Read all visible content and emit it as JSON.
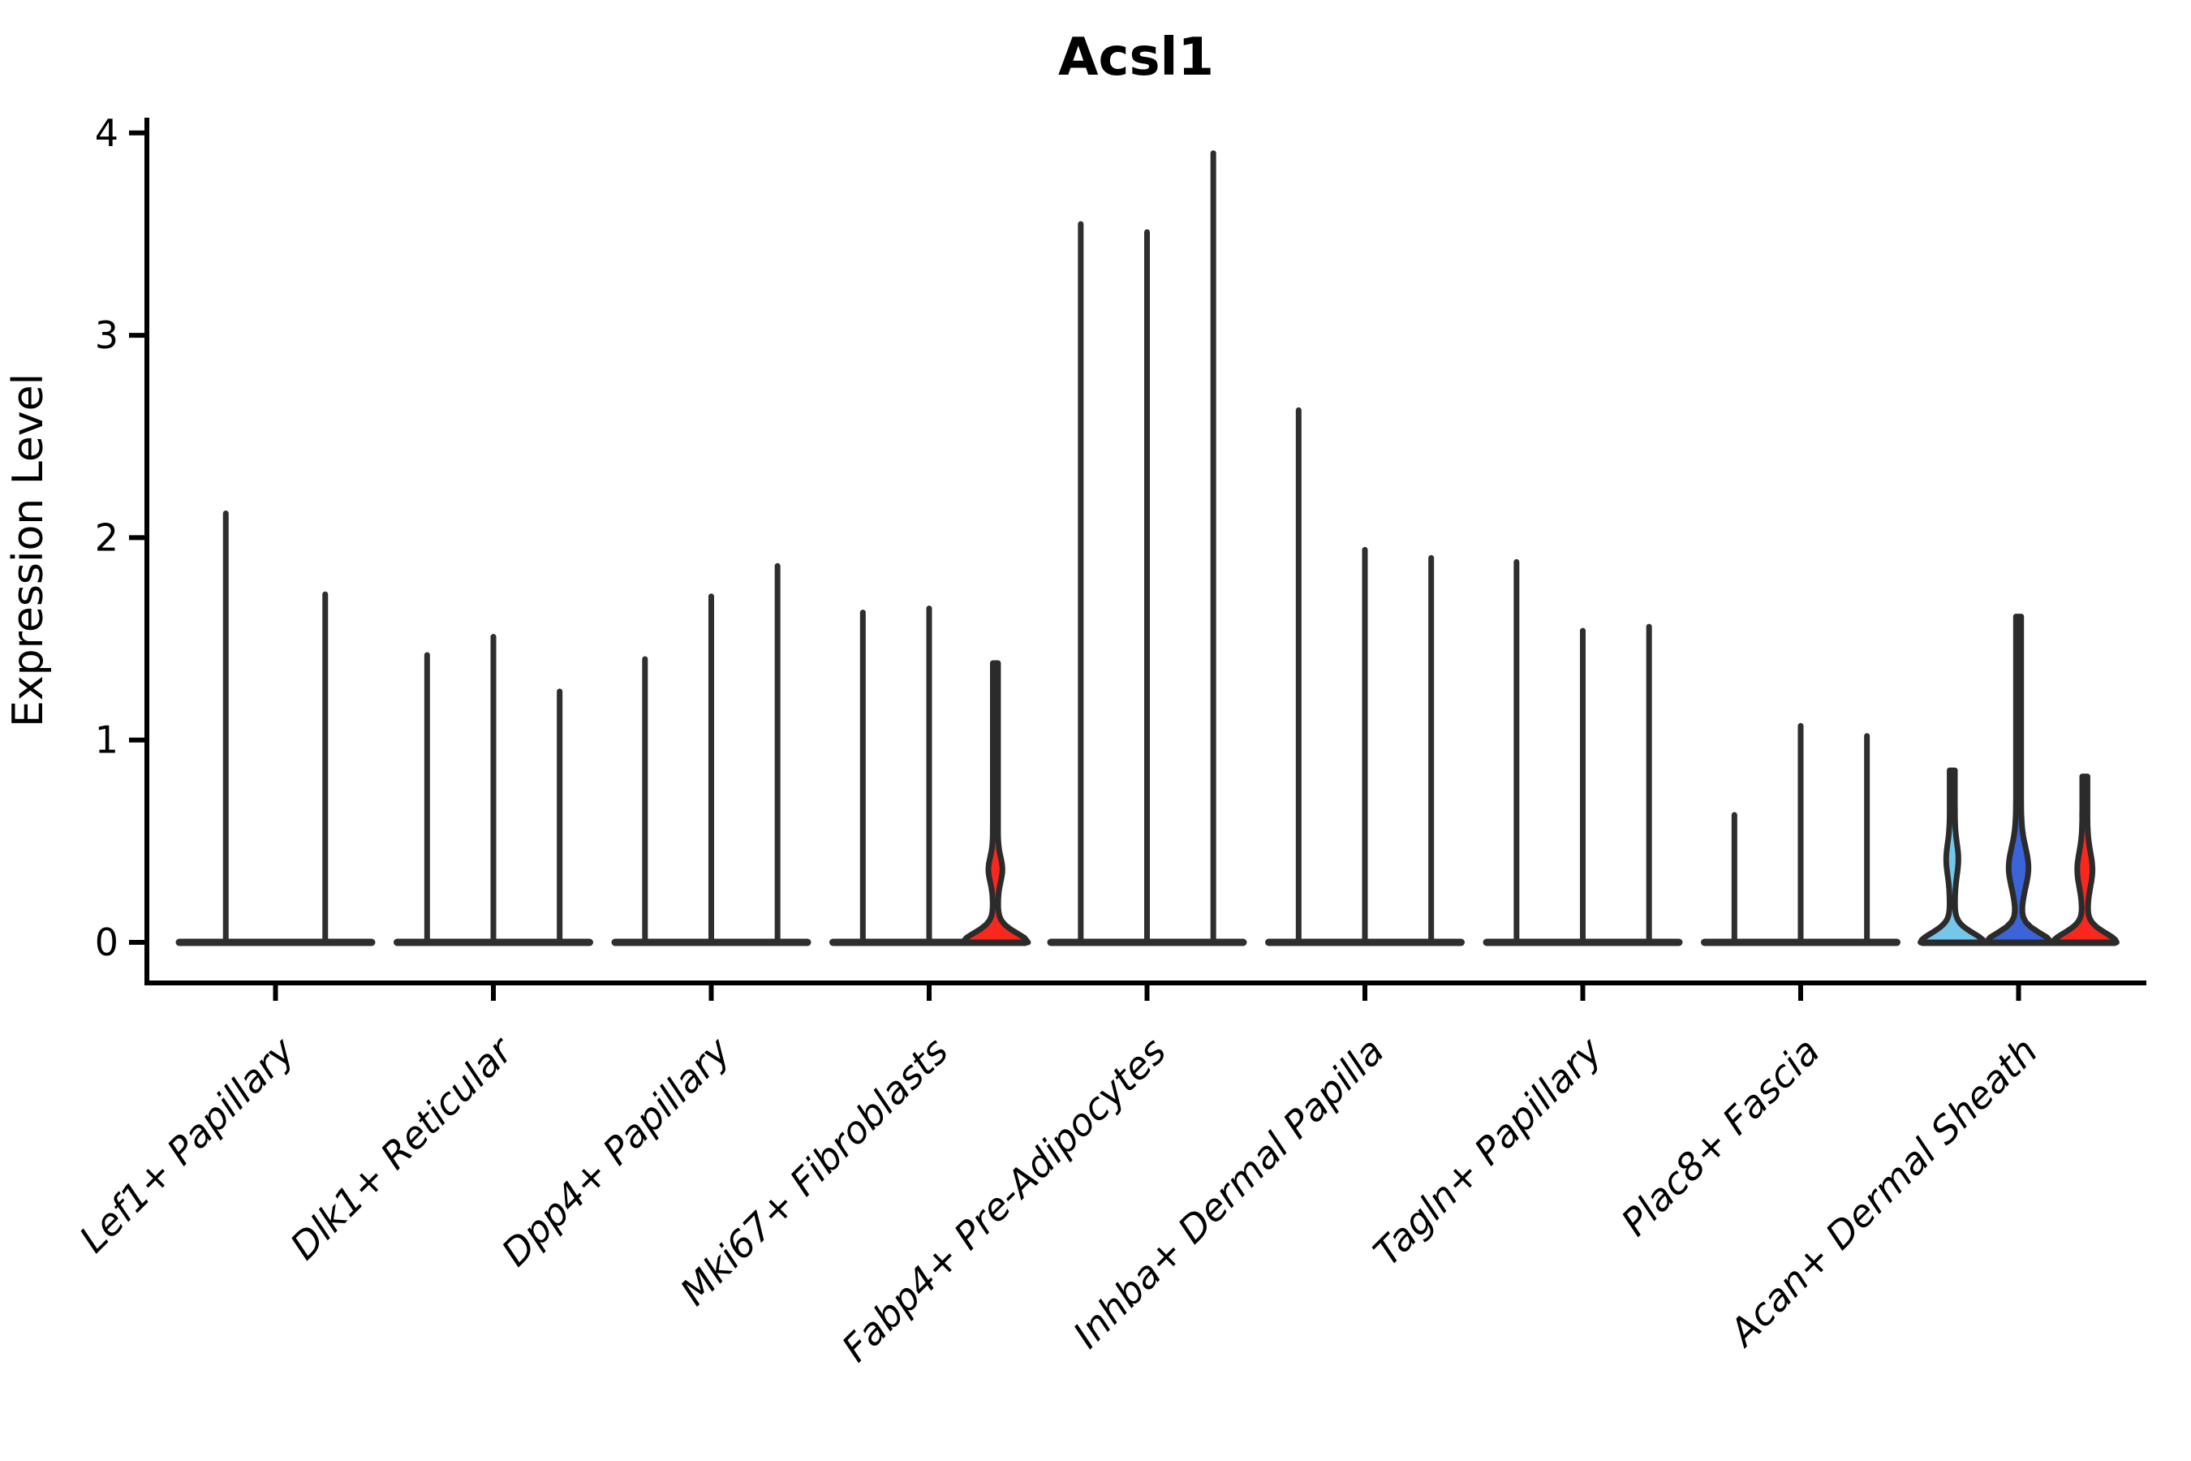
{
  "figure": {
    "background": "#ffffff",
    "axis_color": "#000000",
    "stick_color": "#2e2e2e",
    "outline_color": "#2b2b2b"
  },
  "chart_data": {
    "type": "violin",
    "title": "Acsl1",
    "ylabel": "Expression Level",
    "xlabel": "",
    "ylim": [
      0,
      4
    ],
    "yticks": [
      0,
      1,
      2,
      3,
      4
    ],
    "grid": "off",
    "legend": "none",
    "palette": {
      "light_blue": "#74C6EA",
      "blue": "#3A64D8",
      "red": "#F8281F"
    },
    "categories": [
      "Lef1+ Papillary",
      "Dlk1+ Reticular",
      "Dpp4+ Papillary",
      "Mki67+ Fibroblasts",
      "Fabp4+ Pre-Adipocytes",
      "Inhba+ Dermal Papilla",
      "Tagln+ Papillary",
      "Plac8+ Fascia",
      "Acan+ Dermal Sheath"
    ],
    "groups": [
      {
        "category": "Lef1+ Papillary",
        "violins": [
          {
            "value": 2.12,
            "style": "stick"
          },
          {
            "value": 1.72,
            "style": "stick"
          }
        ]
      },
      {
        "category": "Dlk1+ Reticular",
        "violins": [
          {
            "value": 1.42,
            "style": "stick"
          },
          {
            "value": 1.51,
            "style": "stick"
          },
          {
            "value": 1.24,
            "style": "stick"
          }
        ]
      },
      {
        "category": "Dpp4+ Papillary",
        "violins": [
          {
            "value": 1.4,
            "style": "stick"
          },
          {
            "value": 1.71,
            "style": "stick"
          },
          {
            "value": 1.86,
            "style": "stick"
          }
        ]
      },
      {
        "category": "Mki67+ Fibroblasts",
        "violins": [
          {
            "value": 1.63,
            "style": "stick"
          },
          {
            "value": 1.65,
            "style": "stick"
          },
          {
            "value": 1.38,
            "style": "violin",
            "color": "#F8281F",
            "body": {
              "bulge_center": 0.36,
              "bulge_sigma": 0.085,
              "bulge_halfwidth": 5.5,
              "base_halfwidth": 37
            }
          }
        ]
      },
      {
        "category": "Fabp4+ Pre-Adipocytes",
        "violins": [
          {
            "value": 3.55,
            "style": "stick"
          },
          {
            "value": 3.51,
            "style": "stick"
          },
          {
            "value": 3.9,
            "style": "stick"
          }
        ]
      },
      {
        "category": "Inhba+ Dermal Papilla",
        "violins": [
          {
            "value": 2.63,
            "style": "stick"
          },
          {
            "value": 1.94,
            "style": "stick"
          },
          {
            "value": 1.9,
            "style": "stick"
          }
        ]
      },
      {
        "category": "Tagln+ Papillary",
        "violins": [
          {
            "value": 1.88,
            "style": "stick"
          },
          {
            "value": 1.54,
            "style": "stick"
          },
          {
            "value": 1.56,
            "style": "stick"
          }
        ]
      },
      {
        "category": "Plac8+ Fascia",
        "violins": [
          {
            "value": 0.63,
            "style": "stick"
          },
          {
            "value": 1.07,
            "style": "stick"
          },
          {
            "value": 1.02,
            "style": "stick"
          }
        ]
      },
      {
        "category": "Acan+ Dermal Sheath",
        "violins": [
          {
            "value": 0.85,
            "style": "violin",
            "color": "#74C6EA",
            "body": {
              "bulge_center": 0.41,
              "bulge_sigma": 0.11,
              "bulge_halfwidth": 4.3,
              "base_halfwidth": 36
            }
          },
          {
            "value": 1.61,
            "style": "violin",
            "color": "#3A64D8",
            "body": {
              "bulge_center": 0.37,
              "bulge_sigma": 0.14,
              "bulge_halfwidth": 9.0,
              "base_halfwidth": 37
            }
          },
          {
            "value": 0.82,
            "style": "violin",
            "color": "#F8281F",
            "body": {
              "bulge_center": 0.36,
              "bulge_sigma": 0.12,
              "bulge_halfwidth": 6.2,
              "base_halfwidth": 36
            }
          }
        ]
      }
    ]
  }
}
